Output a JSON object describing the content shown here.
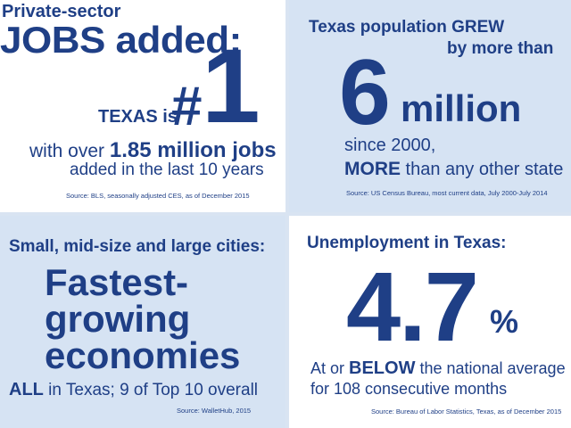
{
  "panel1": {
    "line1": "Private-sector",
    "line2": "JOBS added:",
    "texas_is": "TEXAS is",
    "hash": "#",
    "rank": "1",
    "with_prefix": "with over",
    "with_value": "1.85 million jobs",
    "added": "added in the last 10 years",
    "source": "Source: BLS, seasonally adjusted CES, as of December 2015"
  },
  "panel2": {
    "line1": "Texas population GREW",
    "line2": "by more than",
    "number": "6",
    "unit": "million",
    "since": "since 2000,",
    "more_bold": "MORE",
    "more_rest": " than any other state",
    "source": "Source: US Census Bureau, most current data, July 2000-July 2014"
  },
  "panel3": {
    "line1": "Small, mid-size and large cities:",
    "big1": "Fastest-",
    "big2": "growing",
    "big3": "economies",
    "all_bold": "ALL",
    "all_rest": " in Texas; 9 of Top 10 overall",
    "source": "Source: WalletHub, 2015"
  },
  "panel4": {
    "line1": "Unemployment in Texas:",
    "number": "4.7",
    "percent": "%",
    "below_prefix": "At or ",
    "below_bold": "BELOW",
    "below_rest": " the national average",
    "for_line": "for 108 consecutive months",
    "source": "Source: Bureau of Labor Statistics, Texas, as of December 2015"
  }
}
